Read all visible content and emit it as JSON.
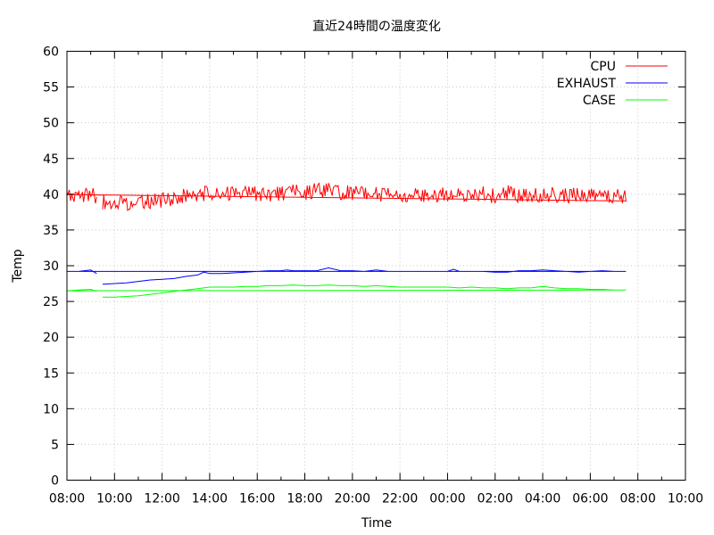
{
  "chart_data": {
    "type": "line",
    "title": "直近24時間の温度変化",
    "xlabel": "Time",
    "ylabel": "Temp",
    "ylim": [
      0,
      60
    ],
    "yticks": [
      0,
      5,
      10,
      15,
      20,
      25,
      30,
      35,
      40,
      45,
      50,
      55,
      60
    ],
    "xlim": [
      "08:00",
      "10:00 (+1 day)"
    ],
    "xticks": [
      "08:00",
      "10:00",
      "12:00",
      "14:00",
      "16:00",
      "18:00",
      "20:00",
      "22:00",
      "00:00",
      "02:00",
      "04:00",
      "06:00",
      "08:00",
      "10:00"
    ],
    "grid": true,
    "legend_position": "top-right",
    "series": [
      {
        "name": "CPU",
        "color": "#ff0000",
        "x": [
          "09:30",
          "10:00",
          "10:30",
          "11:00",
          "11:30",
          "12:00",
          "12:30",
          "13:00",
          "13:30",
          "14:00",
          "14:30",
          "15:00",
          "15:30",
          "16:00",
          "16:30",
          "17:00",
          "17:30",
          "18:00",
          "18:30",
          "19:00",
          "19:30",
          "20:00",
          "20:30",
          "21:00",
          "21:30",
          "22:00",
          "22:30",
          "23:00",
          "23:30",
          "00:00",
          "00:30",
          "01:00",
          "01:30",
          "02:00",
          "02:30",
          "03:00",
          "03:30",
          "04:00",
          "04:30",
          "05:00",
          "05:30",
          "06:00",
          "06:30",
          "07:00",
          "07:30",
          "08:00",
          "08:30",
          "09:00",
          "09:15"
        ],
        "y": [
          39.0,
          38.6,
          38.8,
          38.9,
          39.1,
          39.2,
          39.3,
          39.8,
          40.0,
          40.1,
          40.0,
          40.1,
          40.2,
          40.1,
          40.0,
          40.2,
          40.3,
          40.2,
          40.5,
          40.4,
          40.3,
          40.2,
          40.1,
          40.0,
          40.1,
          39.9,
          39.8,
          39.9,
          40.0,
          40.1,
          39.7,
          39.8,
          40.0,
          39.8,
          40.2,
          39.9,
          39.7,
          40.1,
          39.9,
          39.8,
          39.9,
          39.7,
          39.8,
          39.6,
          39.7,
          39.5,
          39.8,
          40.2,
          39.6
        ]
      },
      {
        "name": "EXHAUST",
        "color": "#0000ff",
        "x": [
          "09:30",
          "10:00",
          "10:30",
          "11:00",
          "11:30",
          "12:00",
          "12:30",
          "13:00",
          "13:30",
          "13:45",
          "14:00",
          "14:30",
          "15:00",
          "15:30",
          "16:00",
          "16:30",
          "17:00",
          "17:15",
          "17:30",
          "18:00",
          "18:30",
          "19:00",
          "19:30",
          "20:00",
          "20:30",
          "21:00",
          "21:30",
          "22:00",
          "22:30",
          "23:00",
          "23:30",
          "00:00",
          "00:15",
          "00:30",
          "01:00",
          "01:30",
          "02:00",
          "02:30",
          "03:00",
          "03:30",
          "04:00",
          "04:30",
          "05:00",
          "05:30",
          "06:00",
          "06:30",
          "07:00",
          "07:30",
          "08:00",
          "08:30",
          "09:00",
          "09:15"
        ],
        "y": [
          27.4,
          27.5,
          27.6,
          27.8,
          28.0,
          28.1,
          28.2,
          28.5,
          28.7,
          29.1,
          28.9,
          28.9,
          29.0,
          29.1,
          29.2,
          29.3,
          29.3,
          29.4,
          29.3,
          29.3,
          29.3,
          29.7,
          29.3,
          29.3,
          29.2,
          29.4,
          29.2,
          29.2,
          29.2,
          29.2,
          29.2,
          29.2,
          29.5,
          29.2,
          29.2,
          29.2,
          29.1,
          29.1,
          29.3,
          29.3,
          29.4,
          29.3,
          29.2,
          29.1,
          29.2,
          29.3,
          29.2,
          29.2,
          29.2,
          29.2,
          29.4,
          28.9
        ]
      },
      {
        "name": "CASE",
        "color": "#00ff00",
        "x": [
          "09:30",
          "10:00",
          "10:30",
          "11:00",
          "11:30",
          "12:00",
          "12:30",
          "13:00",
          "13:30",
          "14:00",
          "14:30",
          "15:00",
          "15:30",
          "16:00",
          "16:30",
          "17:00",
          "17:30",
          "18:00",
          "18:30",
          "19:00",
          "19:30",
          "20:00",
          "20:30",
          "21:00",
          "21:30",
          "22:00",
          "22:30",
          "23:00",
          "23:30",
          "00:00",
          "00:30",
          "01:00",
          "01:30",
          "02:00",
          "02:30",
          "03:00",
          "03:30",
          "04:00",
          "04:30",
          "05:00",
          "05:30",
          "06:00",
          "06:30",
          "07:00",
          "07:30",
          "08:00",
          "08:30",
          "09:00",
          "09:15"
        ],
        "y": [
          25.6,
          25.6,
          25.7,
          25.8,
          26.0,
          26.2,
          26.4,
          26.6,
          26.8,
          27.0,
          27.0,
          27.0,
          27.1,
          27.1,
          27.2,
          27.2,
          27.3,
          27.2,
          27.2,
          27.3,
          27.2,
          27.2,
          27.1,
          27.2,
          27.1,
          27.0,
          27.0,
          27.0,
          27.0,
          27.0,
          26.9,
          27.0,
          26.9,
          26.9,
          26.8,
          26.9,
          26.9,
          27.1,
          26.9,
          26.8,
          26.8,
          26.7,
          26.7,
          26.6,
          26.6,
          26.5,
          26.6,
          26.7,
          26.4
        ]
      }
    ]
  }
}
